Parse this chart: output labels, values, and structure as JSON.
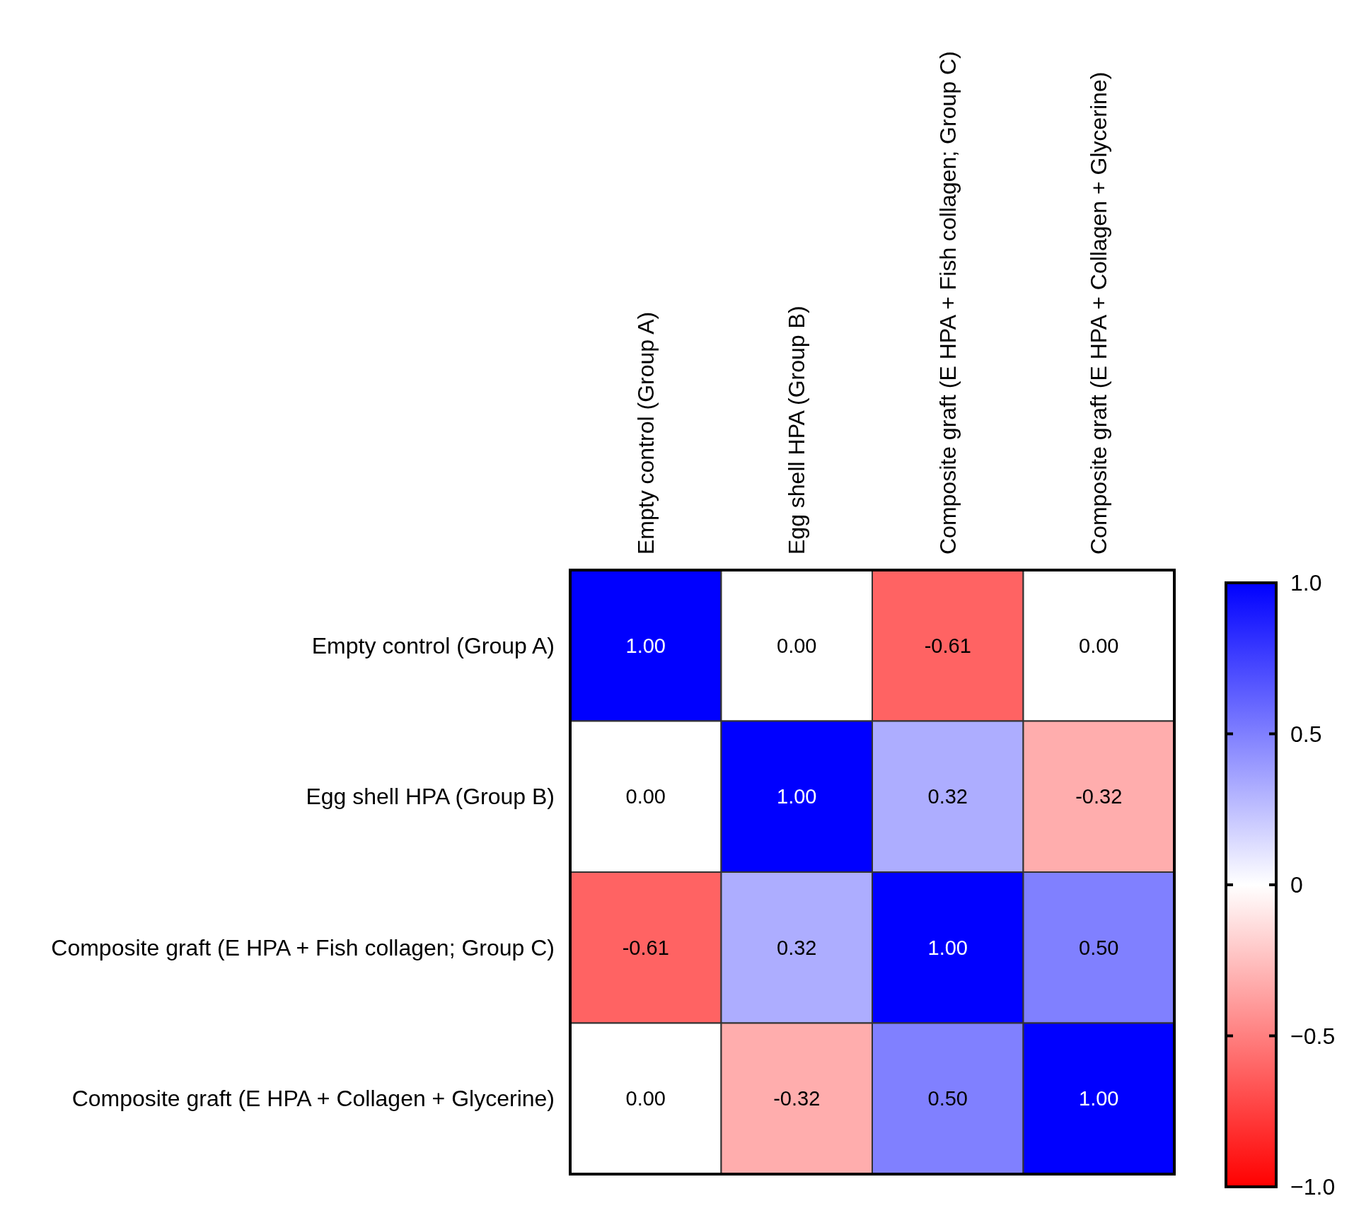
{
  "chart_data": {
    "type": "heatmap",
    "categories": [
      "Empty control (Group A)",
      "Egg shell HPA (Group B)",
      "Composite graft (E HPA + Fish collagen; Group C)",
      "Composite graft (E HPA + Collagen + Glycerine)"
    ],
    "y_categories": [
      "Empty control (Group A)",
      "Egg shell HPA (Group B)",
      "Composite graft (E HPA + Fish collagen; Group C)",
      "Composite graft (E HPA + Collagen + Glycerine)"
    ],
    "cells": [
      [
        1,
        0,
        -0.61,
        0
      ],
      [
        0,
        1,
        0.32,
        -0.32
      ],
      [
        -0.61,
        0.32,
        1,
        0.5
      ],
      [
        0,
        -0.32,
        0.5,
        1
      ]
    ],
    "cell_labels": [
      [
        "1.00",
        "0.00",
        "-0.61",
        "0.00"
      ],
      [
        "0.00",
        "1.00",
        "0.32",
        "-0.32"
      ],
      [
        "-0.61",
        "0.32",
        "1.00",
        "0.50"
      ],
      [
        "0.00",
        "-0.32",
        "0.50",
        "1.00"
      ]
    ],
    "clim": [
      -1,
      1
    ],
    "cticks": [
      {
        "value": 1,
        "label": "1.0"
      },
      {
        "value": 0.5,
        "label": "0.5"
      },
      0,
      {
        "value": -0.5,
        "label": "−0.5"
      },
      {
        "value": -1,
        "label": "−1.0"
      }
    ]
  }
}
